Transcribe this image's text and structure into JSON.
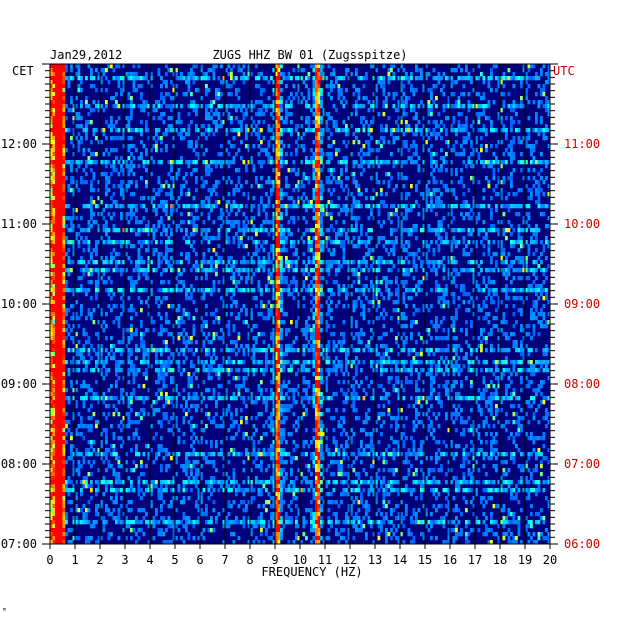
{
  "chart_data": {
    "type": "heatmap",
    "date": "Jan29,2012",
    "title": "ZUGS HHZ BW 01 (Zugsspitze)",
    "xlabel": "FREQUENCY (HZ)",
    "xlim": [
      0,
      20
    ],
    "x_ticks": [
      "0",
      "1",
      "2",
      "3",
      "4",
      "5",
      "6",
      "7",
      "8",
      "9",
      "10",
      "11",
      "12",
      "13",
      "14",
      "15",
      "16",
      "17",
      "18",
      "19",
      "20"
    ],
    "left_axis_label": "CET",
    "right_axis_label": "UTC",
    "left_ticks": [
      "12:00",
      "11:00",
      "10:00",
      "09:00",
      "08:00",
      "07:00"
    ],
    "right_ticks": [
      "11:00",
      "10:00",
      "09:00",
      "08:00",
      "07:00",
      "06:00"
    ],
    "time_range_cet": [
      "07:00",
      "13:00"
    ],
    "colormap": [
      "#000080",
      "#0000ff",
      "#00ffff",
      "#ffff00",
      "#ff0000"
    ],
    "dominant_bands_hz": [
      0.35,
      9.1,
      10.7
    ],
    "colors": {
      "axis_text": "#000000",
      "utc_text": "#cc0000",
      "background": "#00007a"
    }
  },
  "corner_mark": "ᵐ"
}
